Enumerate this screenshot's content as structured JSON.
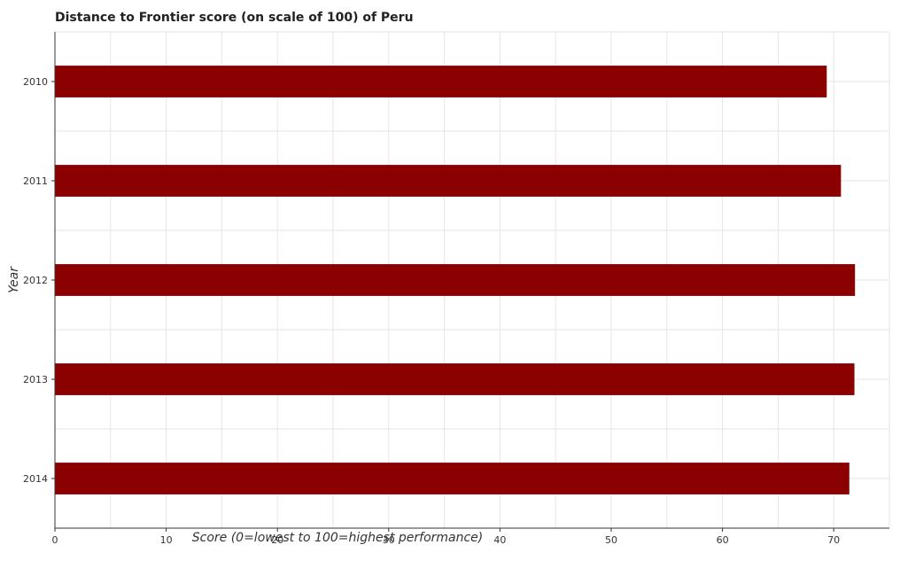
{
  "chart_data": {
    "type": "bar",
    "orientation": "horizontal",
    "title": "Distance to Frontier score (on scale of 100) of Peru",
    "xlabel": "Score (0=lowest to 100=highest performance)",
    "ylabel": "Year",
    "categories": [
      "2010",
      "2011",
      "2012",
      "2013",
      "2014"
    ],
    "values": [
      69.37,
      70.65,
      71.91,
      71.86,
      71.4
    ],
    "xlim": [
      0,
      75
    ],
    "xticks": [
      "0",
      "10",
      "20",
      "30",
      "40",
      "50",
      "60",
      "70"
    ],
    "bar_color": "#8b0000",
    "grid": true,
    "legend": "none"
  }
}
